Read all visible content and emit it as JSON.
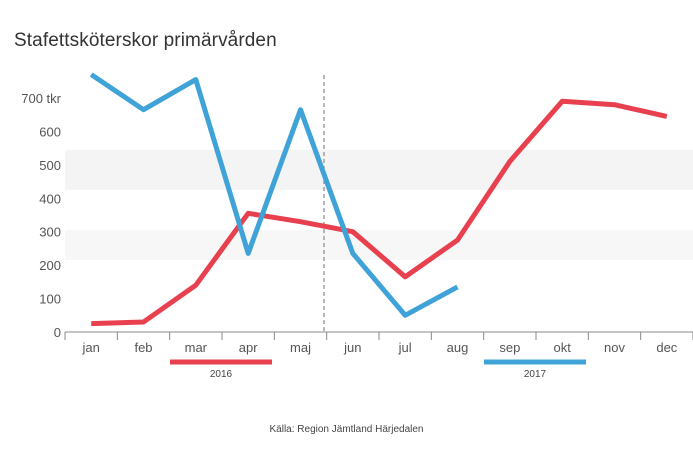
{
  "title": "Stafettsköterskor primärvården",
  "source": "Källa: Region Jämtland Härjedalen",
  "chart_data": {
    "type": "line",
    "title": "Stafettsköterskor primärvården",
    "xlabel": "",
    "ylabel": "",
    "categories": [
      "jan",
      "feb",
      "mar",
      "apr",
      "maj",
      "jun",
      "jul",
      "aug",
      "sep",
      "okt",
      "nov",
      "dec"
    ],
    "y_ticks": [
      "0",
      "100",
      "200",
      "300",
      "400",
      "500",
      "600",
      "700 tkr"
    ],
    "ylim": [
      0,
      700
    ],
    "grid": false,
    "legend_position": "bottom",
    "series": [
      {
        "name": "2016",
        "color": "#e8404f",
        "values": [
          25,
          30,
          140,
          355,
          330,
          300,
          165,
          275,
          510,
          690,
          680,
          645
        ]
      },
      {
        "name": "2017",
        "color": "#3fa3d8",
        "values": [
          770,
          665,
          755,
          235,
          665,
          235,
          50,
          135,
          null,
          null,
          null,
          null
        ]
      }
    ],
    "annotations": [
      "dashed vertical reference line between maj and jun"
    ]
  }
}
